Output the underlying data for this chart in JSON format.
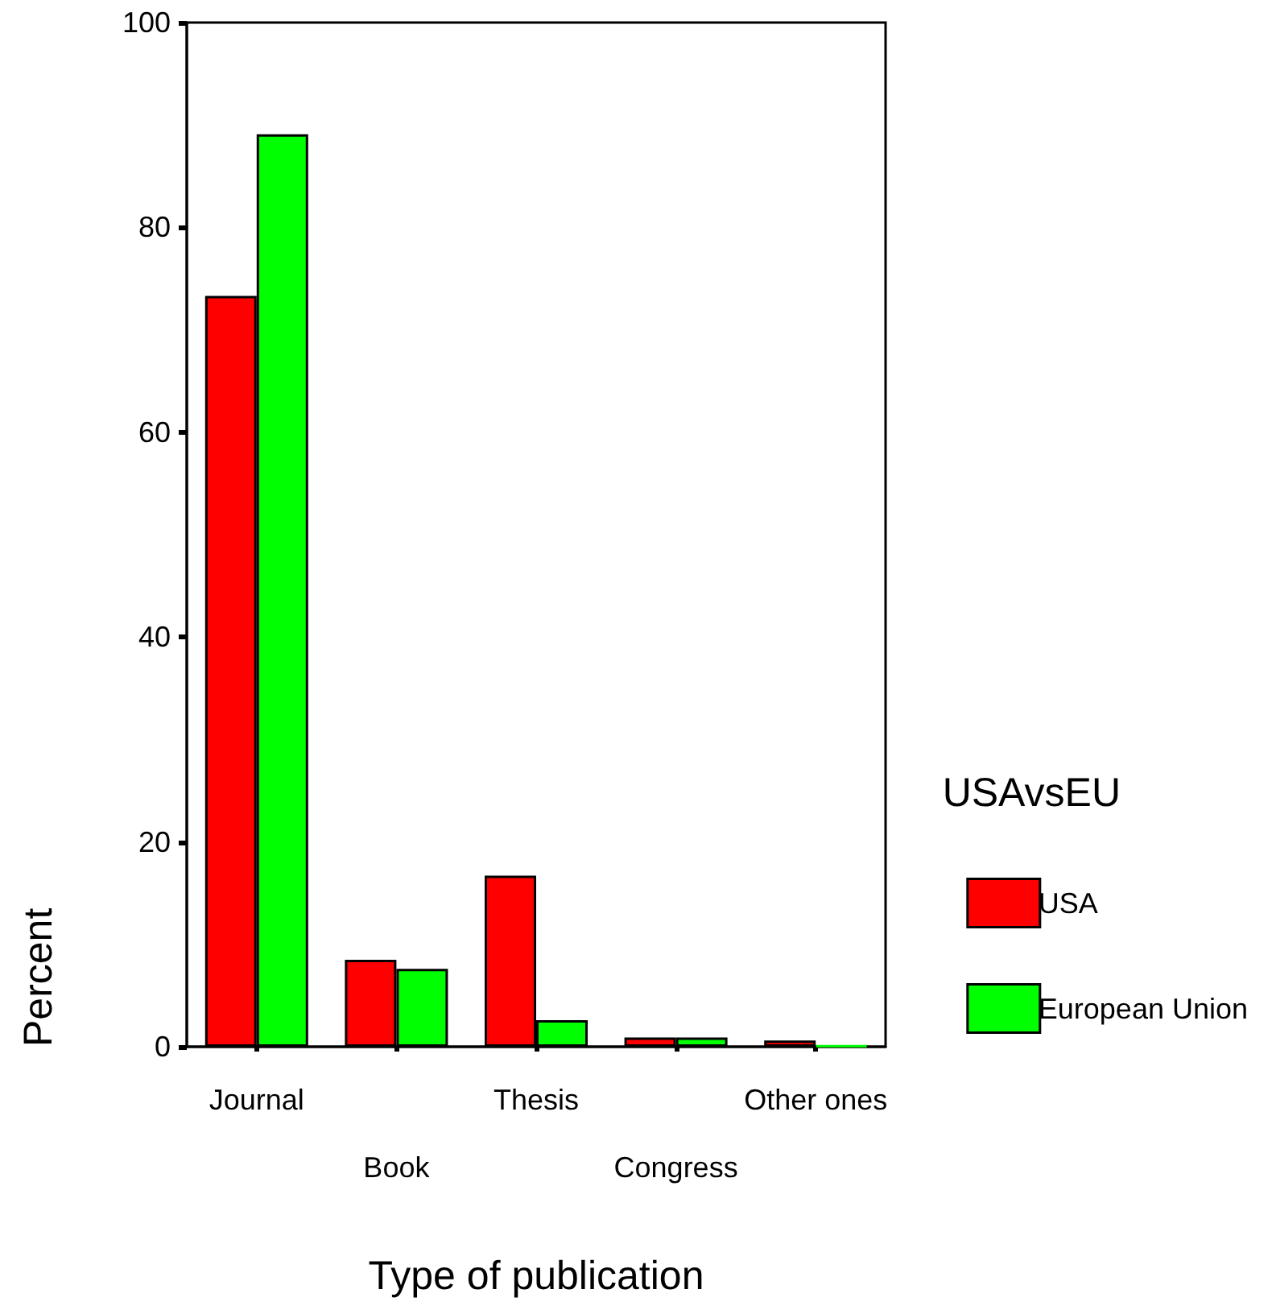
{
  "chart_data": {
    "type": "bar",
    "xlabel": "Type of publication",
    "ylabel": "Percent",
    "legend_title": "USAvsEU",
    "categories": [
      "Journal",
      "Book",
      "Thesis",
      "Congress",
      "Other ones"
    ],
    "series": [
      {
        "name": "USA",
        "color": "#ff0000",
        "values": [
          73.3,
          8.5,
          16.7,
          0.9,
          0.6
        ]
      },
      {
        "name": "European Union",
        "color": "#00ff00",
        "values": [
          89.1,
          7.6,
          2.6,
          0.9,
          0.1
        ]
      }
    ],
    "ylim": [
      0,
      100
    ],
    "yticks": [
      0,
      20,
      40,
      60,
      80,
      100
    ],
    "grid": false,
    "legend": "right"
  }
}
